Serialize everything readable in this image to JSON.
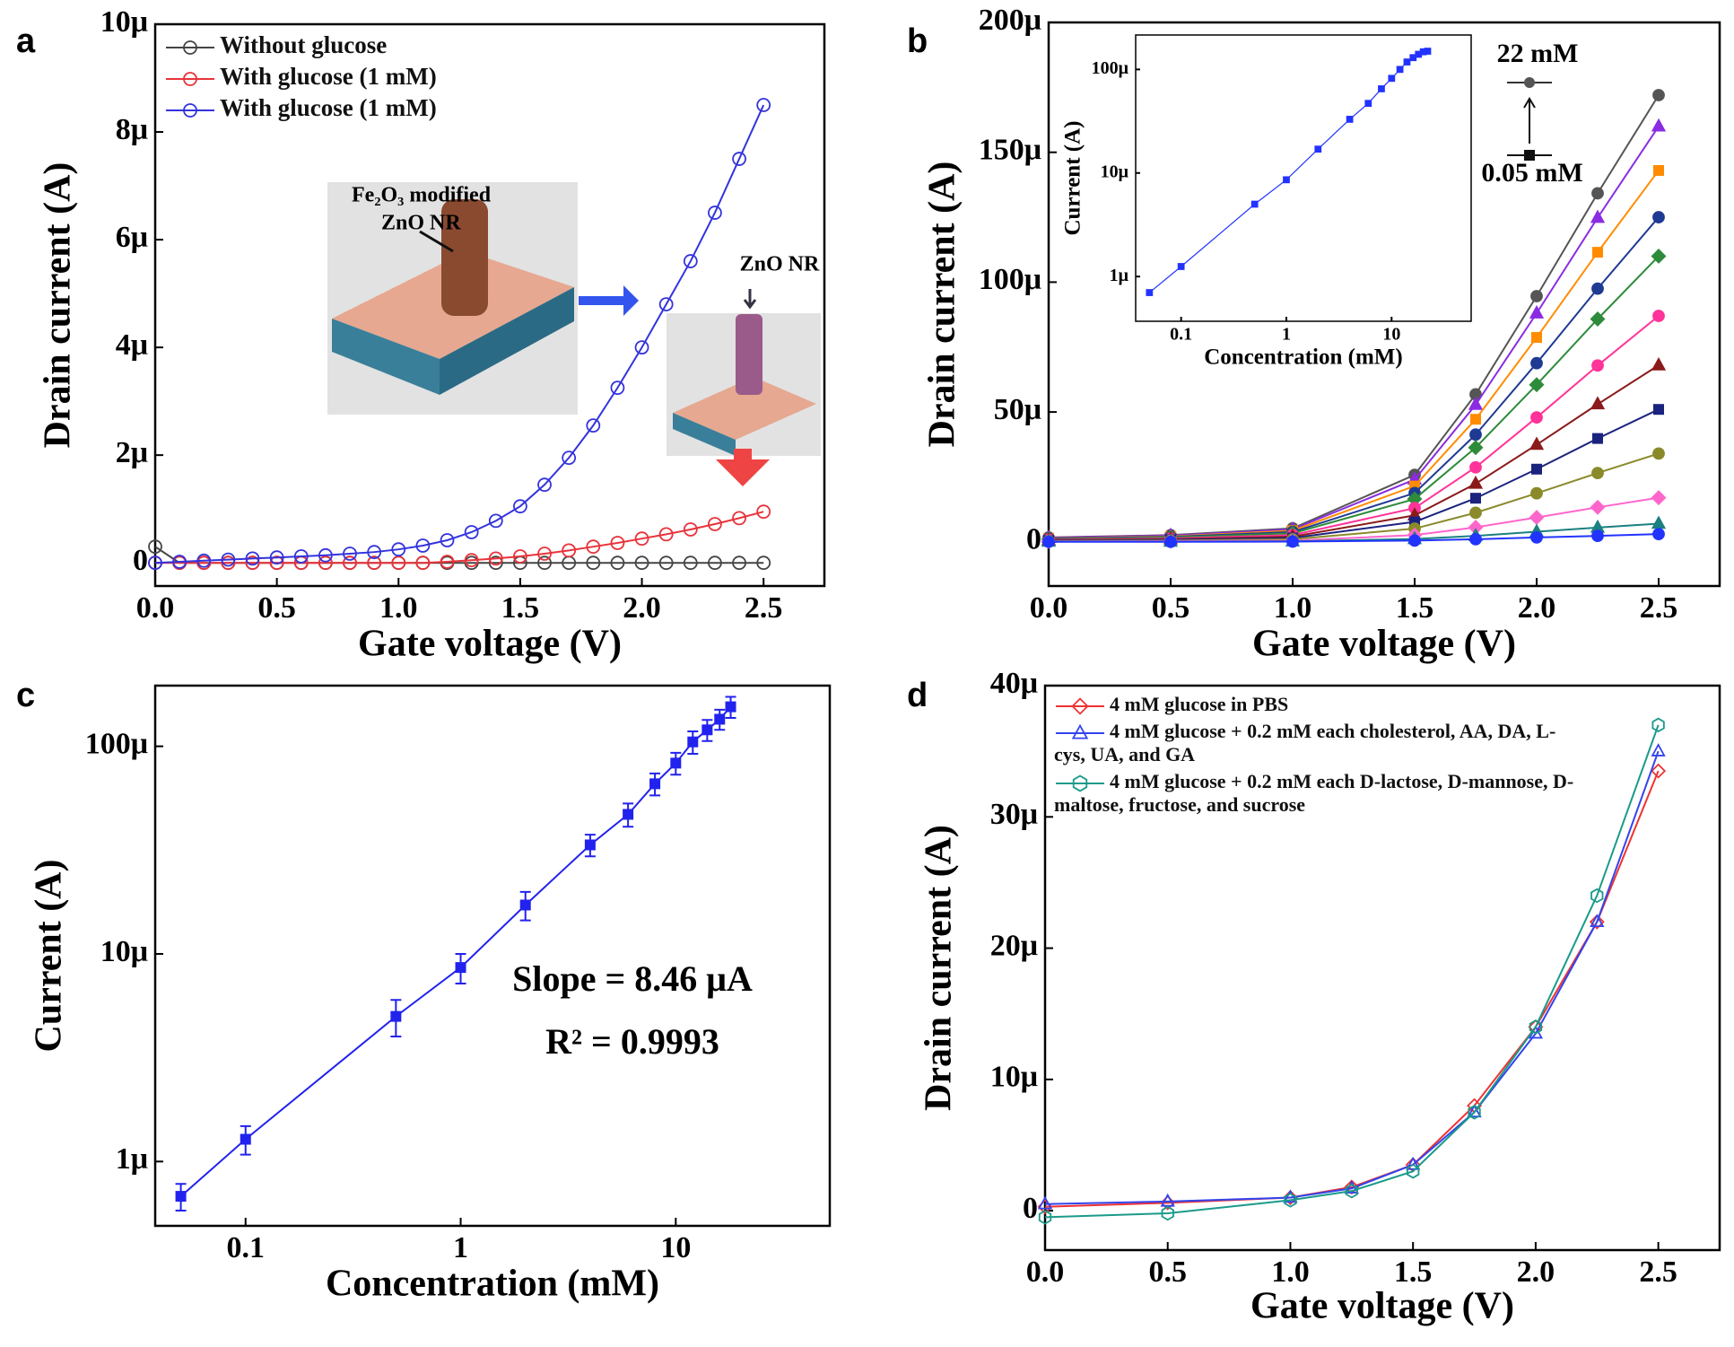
{
  "chart_data": [
    {
      "type": "line",
      "title": "a",
      "xlabel": "Gate voltage (V)",
      "ylabel": "Drain current (A)",
      "annotations": [
        "Fe₂O₃ modified",
        "ZnO NR",
        "ZnO NR"
      ],
      "xlim": [
        0,
        2.75
      ],
      "xticks": [
        {
          "value": 0,
          "label": "0.0"
        },
        0.5,
        {
          "value": 1,
          "label": "1.0"
        },
        1.5,
        {
          "value": 2,
          "label": "2.0"
        },
        2.5
      ],
      "ylim": [
        -4.3e-07,
        1e-05
      ],
      "yticks": [
        0,
        {
          "value": 2e-06,
          "label": "2μ"
        },
        {
          "value": 4e-06,
          "label": "4μ"
        },
        {
          "value": 6e-06,
          "label": "6μ"
        },
        {
          "value": 8e-06,
          "label": "8μ"
        },
        {
          "value": 1e-05,
          "label": "10μ"
        }
      ],
      "legend": "upper left",
      "marker_filled": false,
      "x": [
        0,
        0.1,
        0.2,
        0.3,
        0.4,
        0.5,
        0.6,
        0.7,
        0.8,
        0.9,
        1,
        1.1,
        1.2,
        1.3,
        1.4,
        1.5,
        1.6,
        1.7,
        1.8,
        1.9,
        2,
        2.1,
        2.2,
        2.3,
        2.4,
        2.5
      ],
      "series": [
        {
          "name": "Without glucose",
          "color": "#444444",
          "marker": "circle",
          "values": [
            3e-07,
            0,
            0,
            0,
            0,
            0,
            0,
            0,
            0,
            0,
            0,
            0,
            0,
            0,
            0,
            0,
            0,
            0,
            0,
            0,
            0,
            0,
            0,
            0,
            0,
            0
          ]
        },
        {
          "name": "With glucose (1 mM)",
          "color": "#e8333b",
          "marker": "circle",
          "values": [
            0,
            0,
            0,
            0,
            0,
            0,
            0,
            0,
            0,
            0,
            0,
            0,
            2e-08,
            5e-08,
            8e-08,
            1.2e-07,
            1.7e-07,
            2.3e-07,
            3e-07,
            3.7e-07,
            4.5e-07,
            5.3e-07,
            6.2e-07,
            7.2e-07,
            8.3e-07,
            9.5e-07
          ]
        },
        {
          "name": "With glucose (1 mM)",
          "color": "#3333dd",
          "marker": "circle",
          "values": [
            0,
            2e-08,
            4e-08,
            6e-08,
            8e-08,
            1e-07,
            1.2e-07,
            1.4e-07,
            1.7e-07,
            2e-07,
            2.5e-07,
            3.2e-07,
            4.2e-07,
            5.7e-07,
            7.8e-07,
            1.05e-06,
            1.45e-06,
            1.95e-06,
            2.55e-06,
            3.25e-06,
            4e-06,
            4.8e-06,
            5.6e-06,
            6.5e-06,
            7.5e-06,
            8.5e-06
          ]
        }
      ]
    },
    {
      "type": "line",
      "title": "b",
      "xlabel": "Gate voltage (V)",
      "ylabel": "Drain current (A)",
      "annotations": [
        "22 mM",
        "0.05 mM"
      ],
      "xlim": [
        0,
        2.75
      ],
      "xticks": [
        {
          "value": 0,
          "label": "0.0"
        },
        0.5,
        {
          "value": 1,
          "label": "1.0"
        },
        1.5,
        {
          "value": 2,
          "label": "2.0"
        },
        2.5
      ],
      "ylim": [
        -1.7e-05,
        0.0002
      ],
      "yticks": [
        0,
        {
          "value": 5e-05,
          "label": "50μ"
        },
        {
          "value": 0.0001,
          "label": "100μ"
        },
        {
          "value": 0.00015,
          "label": "150μ"
        },
        {
          "value": 0.0002,
          "label": "200μ"
        }
      ],
      "marker_filled": true,
      "x": [
        0,
        0.5,
        1,
        1.5,
        1.75,
        2,
        2.25,
        2.5
      ],
      "series": [
        {
          "color": "#555555",
          "marker": "circle",
          "values": [
            1.7e-06,
            2.6e-06,
            5.2e-06,
            2.58e-05,
            5.68e-05,
            9.46e-05,
            0.0001342,
            0.000172
          ]
        },
        {
          "color": "#8b2be2",
          "marker": "triangle",
          "values": [
            1.6e-06,
            2.4e-06,
            4.8e-06,
            2.4e-05,
            5.28e-05,
            8.8e-05,
            0.0001248,
            0.00016
          ]
        },
        {
          "color": "#ff8c00",
          "marker": "square",
          "values": [
            1.4e-06,
            2.1e-06,
            4.3e-06,
            2.15e-05,
            4.72e-05,
            7.87e-05,
            0.0001115,
            0.000143
          ]
        },
        {
          "color": "#1f3a93",
          "marker": "circle",
          "values": [
            1.3e-06,
            1.9e-06,
            3.8e-06,
            1.88e-05,
            4.13e-05,
            6.88e-05,
            9.75e-05,
            0.000125
          ]
        },
        {
          "color": "#2e8b3a",
          "marker": "diamond",
          "values": [
            1.1e-06,
            1.7e-06,
            3.3e-06,
            1.65e-05,
            3.63e-05,
            6.05e-05,
            8.58e-05,
            0.00011
          ]
        },
        {
          "color": "#ff3399",
          "marker": "circle",
          "values": [
            9e-07,
            1.3e-06,
            2.6e-06,
            1.3e-05,
            2.87e-05,
            4.79e-05,
            6.79e-05,
            8.7e-05
          ]
        },
        {
          "color": "#8b1a1a",
          "marker": "triangle",
          "values": [
            7e-07,
            1e-06,
            2e-06,
            1.02e-05,
            2.24e-05,
            3.74e-05,
            5.3e-05,
            6.8e-05
          ]
        },
        {
          "color": "#1a237e",
          "marker": "square",
          "values": [
            5e-07,
            8e-07,
            1.5e-06,
            7.7e-06,
            1.68e-05,
            2.8e-05,
            3.98e-05,
            5.1e-05
          ]
        },
        {
          "color": "#8a8a2a",
          "marker": "circle",
          "values": [
            3e-07,
            5e-07,
            1e-06,
            5.1e-06,
            1.12e-05,
            1.87e-05,
            2.65e-05,
            3.4e-05
          ]
        },
        {
          "color": "#ff66cc",
          "marker": "diamond",
          "values": [
            2e-07,
            3e-07,
            5e-07,
            2.6e-06,
            5.6e-06,
            9.4e-06,
            1.33e-05,
            1.7e-05
          ]
        },
        {
          "color": "#1a8080",
          "marker": "triangle",
          "values": [
            1e-07,
            1e-07,
            2e-07,
            1.1e-06,
            2.3e-06,
            3.9e-06,
            5.5e-06,
            7e-06
          ]
        },
        {
          "color": "#2233ff",
          "marker": "circle",
          "values": [
            0,
            0,
            1e-07,
            5e-07,
            1e-06,
            1.7e-06,
            2.3e-06,
            3e-06
          ]
        }
      ]
    },
    {
      "type": "line",
      "xlabel": "Concentration (mM)",
      "ylabel": "Current (A)",
      "xscale": "log",
      "yscale": "log",
      "marker_filled": true,
      "xlim": [
        0.037,
        57
      ],
      "xticks": [
        0.1,
        1,
        10
      ],
      "ylim": [
        3.7e-07,
        0.000215
      ],
      "yticks": [
        {
          "value": 1e-06,
          "label": "1μ"
        },
        {
          "value": 1e-05,
          "label": "10μ"
        },
        {
          "value": 0.0001,
          "label": "100μ"
        }
      ],
      "x": [
        0.05,
        0.1,
        0.5,
        1,
        2,
        4,
        6,
        8,
        10,
        12,
        14,
        16,
        18,
        20,
        22
      ],
      "series": [
        {
          "color": "#2233ff",
          "marker": "square",
          "values": [
            7e-07,
            1.25e-06,
            5e-06,
            8.6e-06,
            1.7e-05,
            3.3e-05,
            4.7e-05,
            6.5e-05,
            8.2e-05,
            0.0001,
            0.000118,
            0.00013,
            0.00014,
            0.000148,
            0.00015
          ]
        }
      ]
    },
    {
      "type": "line",
      "title": "c",
      "xlabel": "Concentration (mM)",
      "ylabel": "Current (A)",
      "annotations": [
        "Slope = 8.46 μA",
        "R² = 0.9993"
      ],
      "xscale": "log",
      "yscale": "log",
      "marker_filled": true,
      "xlim": [
        0.038,
        52
      ],
      "xticks": [
        0.1,
        1,
        10
      ],
      "ylim": [
        4.9e-07,
        0.000196
      ],
      "yticks": [
        {
          "value": 1e-06,
          "label": "1μ"
        },
        {
          "value": 1e-05,
          "label": "10μ"
        },
        {
          "value": 0.0001,
          "label": "100μ"
        }
      ],
      "x": [
        0.05,
        0.1,
        0.5,
        1,
        2,
        4,
        6,
        8,
        10,
        12,
        14,
        16,
        18
      ],
      "series": [
        {
          "color": "#2222ee",
          "marker": "square",
          "values": [
            6.8e-07,
            1.28e-06,
            5e-06,
            8.6e-06,
            1.72e-05,
            3.35e-05,
            4.7e-05,
            6.6e-05,
            8.3e-05,
            0.000105,
            0.00012,
            0.000135,
            0.000155
          ],
          "errors": [
            1e-07,
            2e-07,
            1e-06,
            1.4e-06,
            2.7e-06,
            4e-06,
            6e-06,
            8e-06,
            1e-05,
            1.3e-05,
            1.4e-05,
            1.5e-05,
            1.8e-05
          ]
        }
      ]
    },
    {
      "type": "line",
      "title": "d",
      "xlabel": "Gate voltage (V)",
      "ylabel": "Drain current (A)",
      "xlim": [
        0,
        2.75
      ],
      "xticks": [
        {
          "value": 0,
          "label": "0.0"
        },
        0.5,
        {
          "value": 1,
          "label": "1.0"
        },
        1.5,
        {
          "value": 2,
          "label": "2.0"
        },
        2.5
      ],
      "ylim": [
        -3e-06,
        4e-05
      ],
      "yticks": [
        0,
        {
          "value": 1e-05,
          "label": "10μ"
        },
        {
          "value": 2e-05,
          "label": "20μ"
        },
        {
          "value": 3e-05,
          "label": "30μ"
        },
        {
          "value": 4e-05,
          "label": "40μ"
        }
      ],
      "legend": "upper left",
      "marker_filled": false,
      "x": [
        0,
        0.5,
        1,
        1.25,
        1.5,
        1.75,
        2,
        2.25,
        2.5
      ],
      "series": [
        {
          "name": "4 mM glucose in PBS",
          "color": "#ee3333",
          "marker": "diamond",
          "values": [
            3e-07,
            6e-07,
            1e-06,
            1.8e-06,
            3.5e-06,
            8e-06,
            1.4e-05,
            2.2e-05,
            3.35e-05
          ]
        },
        {
          "name": "4 mM glucose + 0.2 mM each cholesterol, AA, DA, L-cys, UA, and GA",
          "color": "#3344ee",
          "marker": "triangle",
          "values": [
            5e-07,
            7e-07,
            1e-06,
            1.7e-06,
            3.5e-06,
            7.5e-06,
            1.35e-05,
            2.2e-05,
            3.5e-05
          ]
        },
        {
          "name": "4 mM glucose + 0.2 mM each D-lactose, D-mannose, D-maltose, fructose, and sucrose",
          "color": "#1a9a8a",
          "marker": "hexagon",
          "values": [
            -5e-07,
            -2e-07,
            8e-07,
            1.5e-06,
            3e-06,
            7.5e-06,
            1.4e-05,
            2.4e-05,
            3.7e-05
          ]
        }
      ]
    }
  ]
}
